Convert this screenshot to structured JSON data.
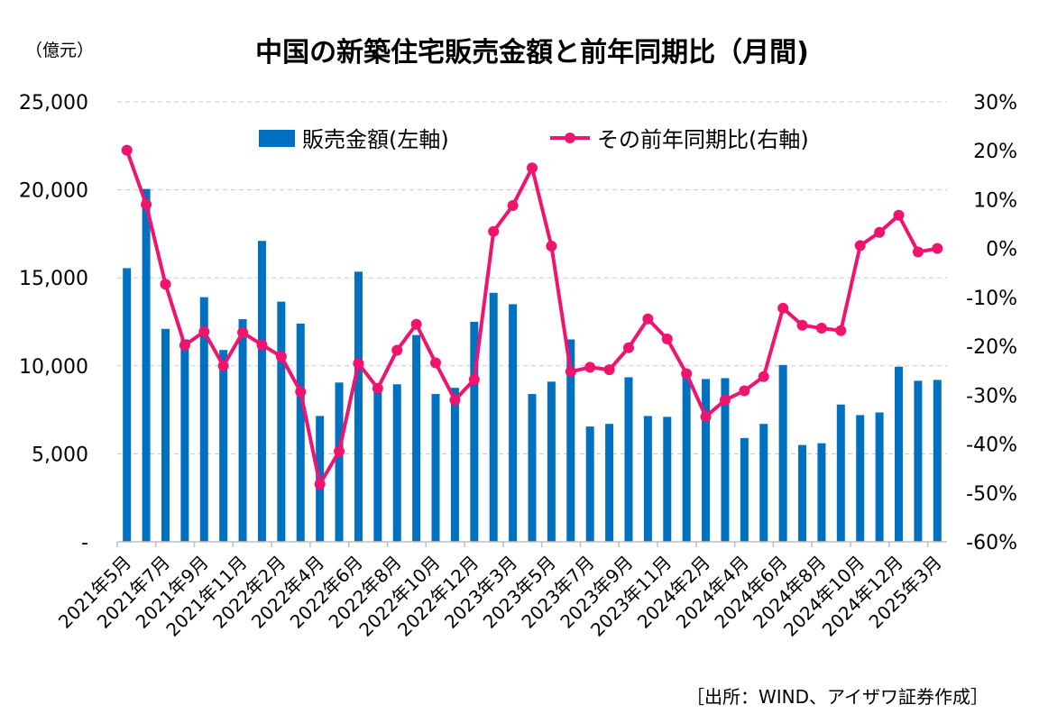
{
  "chart_data": {
    "type": "bar+line",
    "title": "中国の新築住宅販売金額と前年同期比（月間)",
    "unit_left": "（億元）",
    "source": "［出所：WIND、アイザワ証券作成］",
    "left_axis": {
      "min": 0,
      "max": 25000,
      "ticks": [
        "-",
        "5,000",
        "10,000",
        "15,000",
        "20,000",
        "25,000"
      ],
      "tick_values": [
        0,
        5000,
        10000,
        15000,
        20000,
        25000
      ]
    },
    "right_axis": {
      "min": -60,
      "max": 30,
      "ticks": [
        "-60%",
        "-50%",
        "-40%",
        "-30%",
        "-20%",
        "-10%",
        "0%",
        "10%",
        "20%",
        "30%"
      ],
      "tick_values": [
        -60,
        -50,
        -40,
        -30,
        -20,
        -10,
        0,
        10,
        20,
        30
      ]
    },
    "grid": true,
    "legend_position": "top-center",
    "x_tick_labels": [
      "2021年5月",
      "2021年7月",
      "2021年9月",
      "2021年11月",
      "2022年2月",
      "2022年4月",
      "2022年6月",
      "2022年8月",
      "2022年10月",
      "2022年12月",
      "2023年3月",
      "2023年5月",
      "2023年7月",
      "2023年9月",
      "2023年11月",
      "2024年2月",
      "2024年4月",
      "2024年6月",
      "2024年8月",
      "2024年10月",
      "2024年12月",
      "2025年3月"
    ],
    "x_tick_index": [
      0,
      2,
      4,
      6,
      8,
      10,
      12,
      14,
      16,
      18,
      20,
      22,
      24,
      26,
      28,
      30,
      32,
      34,
      36,
      38,
      40,
      42
    ],
    "series": [
      {
        "name": "販売金額(左軸)",
        "kind": "bar",
        "axis": "left",
        "color": "#0070C0",
        "values": [
          15550,
          20050,
          12100,
          11500,
          13900,
          10900,
          12650,
          17100,
          13650,
          12400,
          7150,
          9050,
          15350,
          8900,
          8950,
          11750,
          8400,
          8750,
          12500,
          14150,
          13500,
          8400,
          9100,
          11500,
          6550,
          6700,
          9350,
          7150,
          7100,
          9600,
          9250,
          9300,
          5900,
          6700,
          10050,
          5500,
          5600,
          7800,
          7200,
          7350,
          9950,
          9150,
          9200
        ]
      },
      {
        "name": "その前年同期比(右軸)",
        "kind": "line",
        "axis": "right",
        "color": "#F0146E",
        "values": [
          20.1,
          9.0,
          -7.3,
          -19.8,
          -17.0,
          -24.0,
          -17.2,
          -19.7,
          -22.1,
          -29.3,
          -48.2,
          -41.5,
          -23.5,
          -28.6,
          -20.8,
          -15.5,
          -23.4,
          -31.0,
          -26.8,
          3.5,
          8.8,
          16.5,
          0.5,
          -25.2,
          -24.3,
          -24.8,
          -20.3,
          -14.4,
          -18.5,
          -25.6,
          -34.4,
          -31.0,
          -29.1,
          -26.2,
          -12.2,
          -15.7,
          -16.3,
          -16.8,
          0.6,
          3.3,
          6.8,
          -0.7,
          0.0
        ]
      }
    ]
  }
}
